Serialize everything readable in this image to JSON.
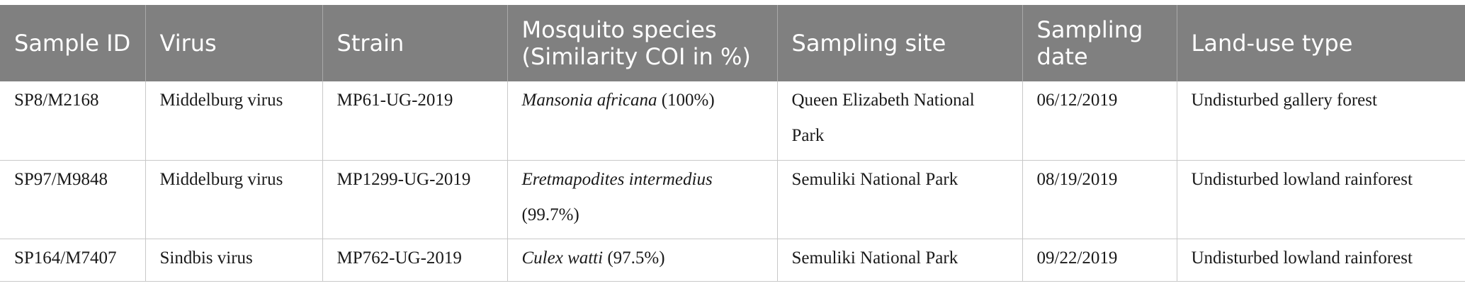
{
  "table": {
    "headers": [
      "Sample ID",
      "Virus",
      "Strain",
      "Mosquito species (Similarity COI in %)",
      "Sampling site",
      "Sampling date",
      "Land-use type"
    ],
    "rows": [
      {
        "sample_id": "SP8/M2168",
        "virus": "Middelburg virus",
        "strain": "MP61-UG-2019",
        "species_name": "Mansonia africana",
        "species_similarity": " (100%)",
        "site": "Queen Elizabeth National Park",
        "date": "06/12/2019",
        "land_use": "Undisturbed gallery forest"
      },
      {
        "sample_id": "SP97/M9848",
        "virus": "Middelburg virus",
        "strain": "MP1299-UG-2019",
        "species_name": "Eretmapodites intermedius",
        "species_similarity": " (99.7%)",
        "site": "Semuliki National Park",
        "date": "08/19/2019",
        "land_use": "Undisturbed lowland rainforest"
      },
      {
        "sample_id": "SP164/M7407",
        "virus": "Sindbis virus",
        "strain": "MP762-UG-2019",
        "species_name": "Culex watti",
        "species_similarity": " (97.5%)",
        "site": "Semuliki National Park",
        "date": "09/22/2019",
        "land_use": "Undisturbed lowland rainforest"
      }
    ]
  }
}
